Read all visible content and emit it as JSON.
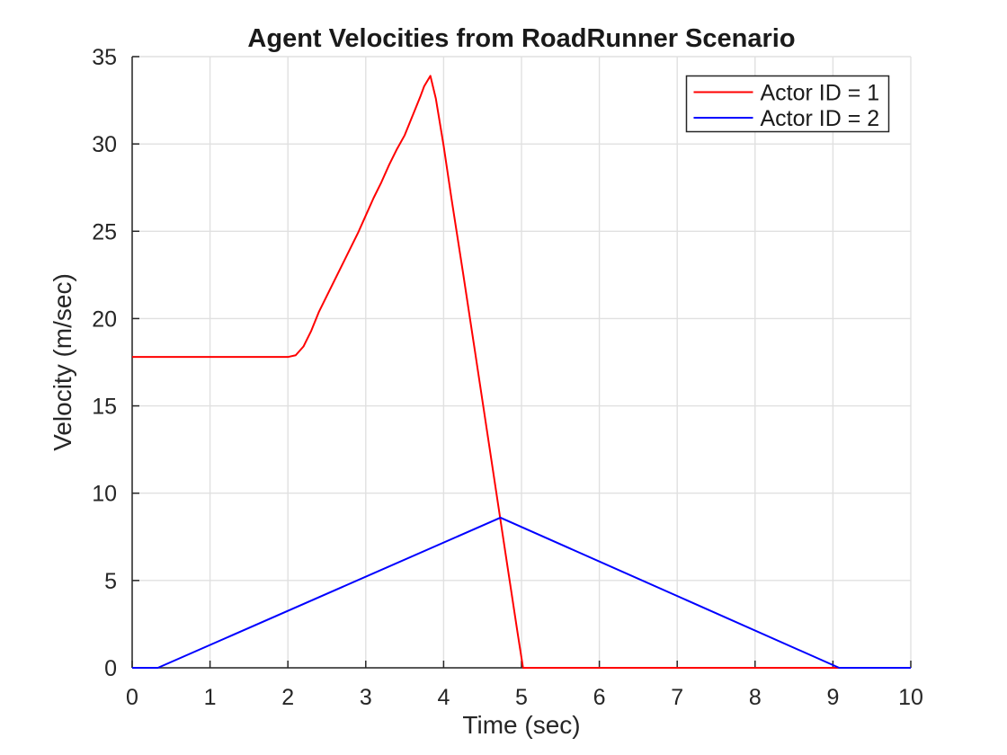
{
  "figure": {
    "background": "#ffffff"
  },
  "chart_data": {
    "type": "line",
    "title": "Agent Velocities from RoadRunner Scenario",
    "xlabel": "Time (sec)",
    "ylabel": "Velocity (m/sec)",
    "xlim": [
      0,
      10
    ],
    "ylim": [
      0,
      35
    ],
    "xticks": [
      0,
      1,
      2,
      3,
      4,
      5,
      6,
      7,
      8,
      9,
      10
    ],
    "yticks": [
      0,
      5,
      10,
      15,
      20,
      25,
      30,
      35
    ],
    "grid": true,
    "grid_color": "#e0e0e0",
    "axis_color": "#262626",
    "legend": {
      "position": "northeast",
      "border_color": "#262626",
      "background": "#ffffff"
    },
    "series": [
      {
        "name": "Actor ID = 1",
        "color": "#ff0000",
        "points": [
          [
            0,
            17.8
          ],
          [
            0.5,
            17.8
          ],
          [
            1.0,
            17.8
          ],
          [
            1.5,
            17.8
          ],
          [
            2.0,
            17.8
          ],
          [
            2.1,
            17.9
          ],
          [
            2.2,
            18.4
          ],
          [
            2.3,
            19.3
          ],
          [
            2.4,
            20.4
          ],
          [
            2.5,
            21.3
          ],
          [
            2.6,
            22.2
          ],
          [
            2.7,
            23.1
          ],
          [
            2.8,
            24.0
          ],
          [
            2.9,
            24.9
          ],
          [
            3.0,
            25.9
          ],
          [
            3.1,
            26.9
          ],
          [
            3.2,
            27.8
          ],
          [
            3.3,
            28.8
          ],
          [
            3.4,
            29.7
          ],
          [
            3.5,
            30.5
          ],
          [
            3.6,
            31.6
          ],
          [
            3.7,
            32.7
          ],
          [
            3.75,
            33.3
          ],
          [
            3.83,
            33.9
          ],
          [
            3.9,
            32.6
          ],
          [
            4.0,
            29.9
          ],
          [
            4.1,
            26.9
          ],
          [
            4.25,
            22.6
          ],
          [
            4.4,
            18.2
          ],
          [
            4.6,
            12.3
          ],
          [
            4.8,
            6.4
          ],
          [
            4.95,
            2.0
          ],
          [
            5.02,
            0
          ],
          [
            6,
            0
          ],
          [
            7,
            0
          ],
          [
            8,
            0
          ],
          [
            9,
            0
          ],
          [
            10,
            0
          ]
        ]
      },
      {
        "name": "Actor ID = 2",
        "color": "#0000ff",
        "points": [
          [
            0,
            0
          ],
          [
            0.33,
            0
          ],
          [
            4.73,
            8.6
          ],
          [
            9.08,
            0
          ],
          [
            10,
            0
          ]
        ]
      }
    ]
  }
}
